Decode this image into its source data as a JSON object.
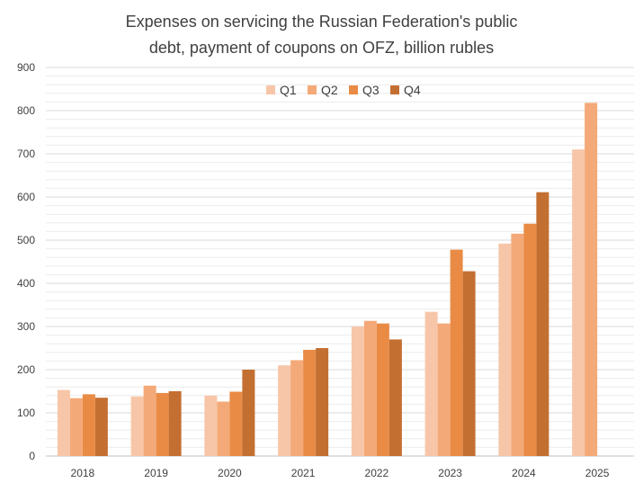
{
  "chart_data": {
    "type": "bar",
    "title_lines": [
      "Expenses on servicing the Russian Federation's public",
      "debt, payment of coupons on OFZ, billion rubles"
    ],
    "xlabel": "",
    "ylabel": "",
    "categories": [
      "2018",
      "2019",
      "2020",
      "2021",
      "2022",
      "2023",
      "2024",
      "2025"
    ],
    "series": [
      {
        "name": "Q1",
        "color": "#F7C6A8",
        "values": [
          153,
          138,
          140,
          210,
          300,
          334,
          492,
          710
        ]
      },
      {
        "name": "Q2",
        "color": "#F4A978",
        "values": [
          134,
          163,
          126,
          222,
          313,
          307,
          515,
          818
        ]
      },
      {
        "name": "Q3",
        "color": "#E98B45",
        "values": [
          143,
          146,
          149,
          246,
          307,
          478,
          538,
          null
        ]
      },
      {
        "name": "Q4",
        "color": "#C46F32",
        "values": [
          135,
          150,
          200,
          250,
          270,
          428,
          611,
          null
        ]
      }
    ],
    "ylim": [
      0,
      900
    ],
    "yticks": [
      0,
      100,
      200,
      300,
      400,
      500,
      600,
      700,
      800,
      900
    ],
    "grid": true,
    "minor_grid": true,
    "legend_position": "top-center"
  }
}
